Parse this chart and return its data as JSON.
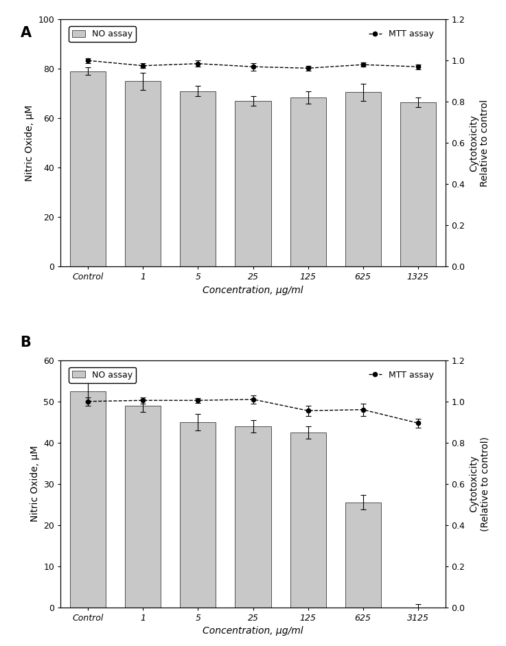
{
  "panel_A": {
    "categories": [
      "Control",
      "1",
      "5",
      "25",
      "125",
      "625",
      "1325"
    ],
    "bar_values": [
      79,
      75,
      71,
      67,
      68.5,
      70.5,
      66.5
    ],
    "bar_errors": [
      1.5,
      3.5,
      2.0,
      2.0,
      2.5,
      3.5,
      2.0
    ],
    "mtt_values": [
      1.0,
      0.975,
      0.985,
      0.97,
      0.963,
      0.98,
      0.97
    ],
    "mtt_errors": [
      0.012,
      0.012,
      0.015,
      0.018,
      0.012,
      0.01,
      0.012
    ],
    "bar_ylim": [
      0,
      100
    ],
    "mtt_ylim": [
      0.0,
      1.2
    ],
    "bar_yticks": [
      0,
      20,
      40,
      60,
      80,
      100
    ],
    "mtt_yticks": [
      0.0,
      0.2,
      0.4,
      0.6,
      0.8,
      1.0,
      1.2
    ],
    "ylabel_left": "Nitric Oxide, μM",
    "ylabel_right": "Cytotoxicity\nRelative to control",
    "xlabel": "Concentration, μg/ml",
    "panel_label": "A"
  },
  "panel_B": {
    "categories": [
      "Control",
      "1",
      "5",
      "25",
      "125",
      "625",
      "3125"
    ],
    "bar_values": [
      52.5,
      49,
      45,
      44,
      42.5,
      25.5,
      0
    ],
    "bar_errors": [
      2.5,
      1.5,
      2.0,
      1.5,
      1.5,
      1.8,
      0.8
    ],
    "mtt_values": [
      1.0,
      1.005,
      1.005,
      1.01,
      0.955,
      0.96,
      0.895
    ],
    "mtt_errors": [
      0.02,
      0.015,
      0.012,
      0.02,
      0.025,
      0.03,
      0.022
    ],
    "bar_ylim": [
      0,
      60
    ],
    "mtt_ylim": [
      0.0,
      1.2
    ],
    "bar_yticks": [
      0,
      10,
      20,
      30,
      40,
      50,
      60
    ],
    "mtt_yticks": [
      0.0,
      0.2,
      0.4,
      0.6,
      0.8,
      1.0,
      1.2
    ],
    "ylabel_left": "Nitric Oxide, μM",
    "ylabel_right": "Cytotoxicity\n(Relative to control)",
    "xlabel": "Concentration, μg/ml",
    "panel_label": "B"
  },
  "bar_color": "#c8c8c8",
  "bar_edgecolor": "#505050",
  "line_color": "#000000",
  "marker_style": "o",
  "marker_size": 4.5,
  "line_width": 1.0,
  "legend_no_label": "NO assay",
  "legend_mtt_label": "MTT assay",
  "font_size_tick": 9,
  "font_size_label": 10,
  "font_size_panel": 15,
  "font_size_legend": 9
}
